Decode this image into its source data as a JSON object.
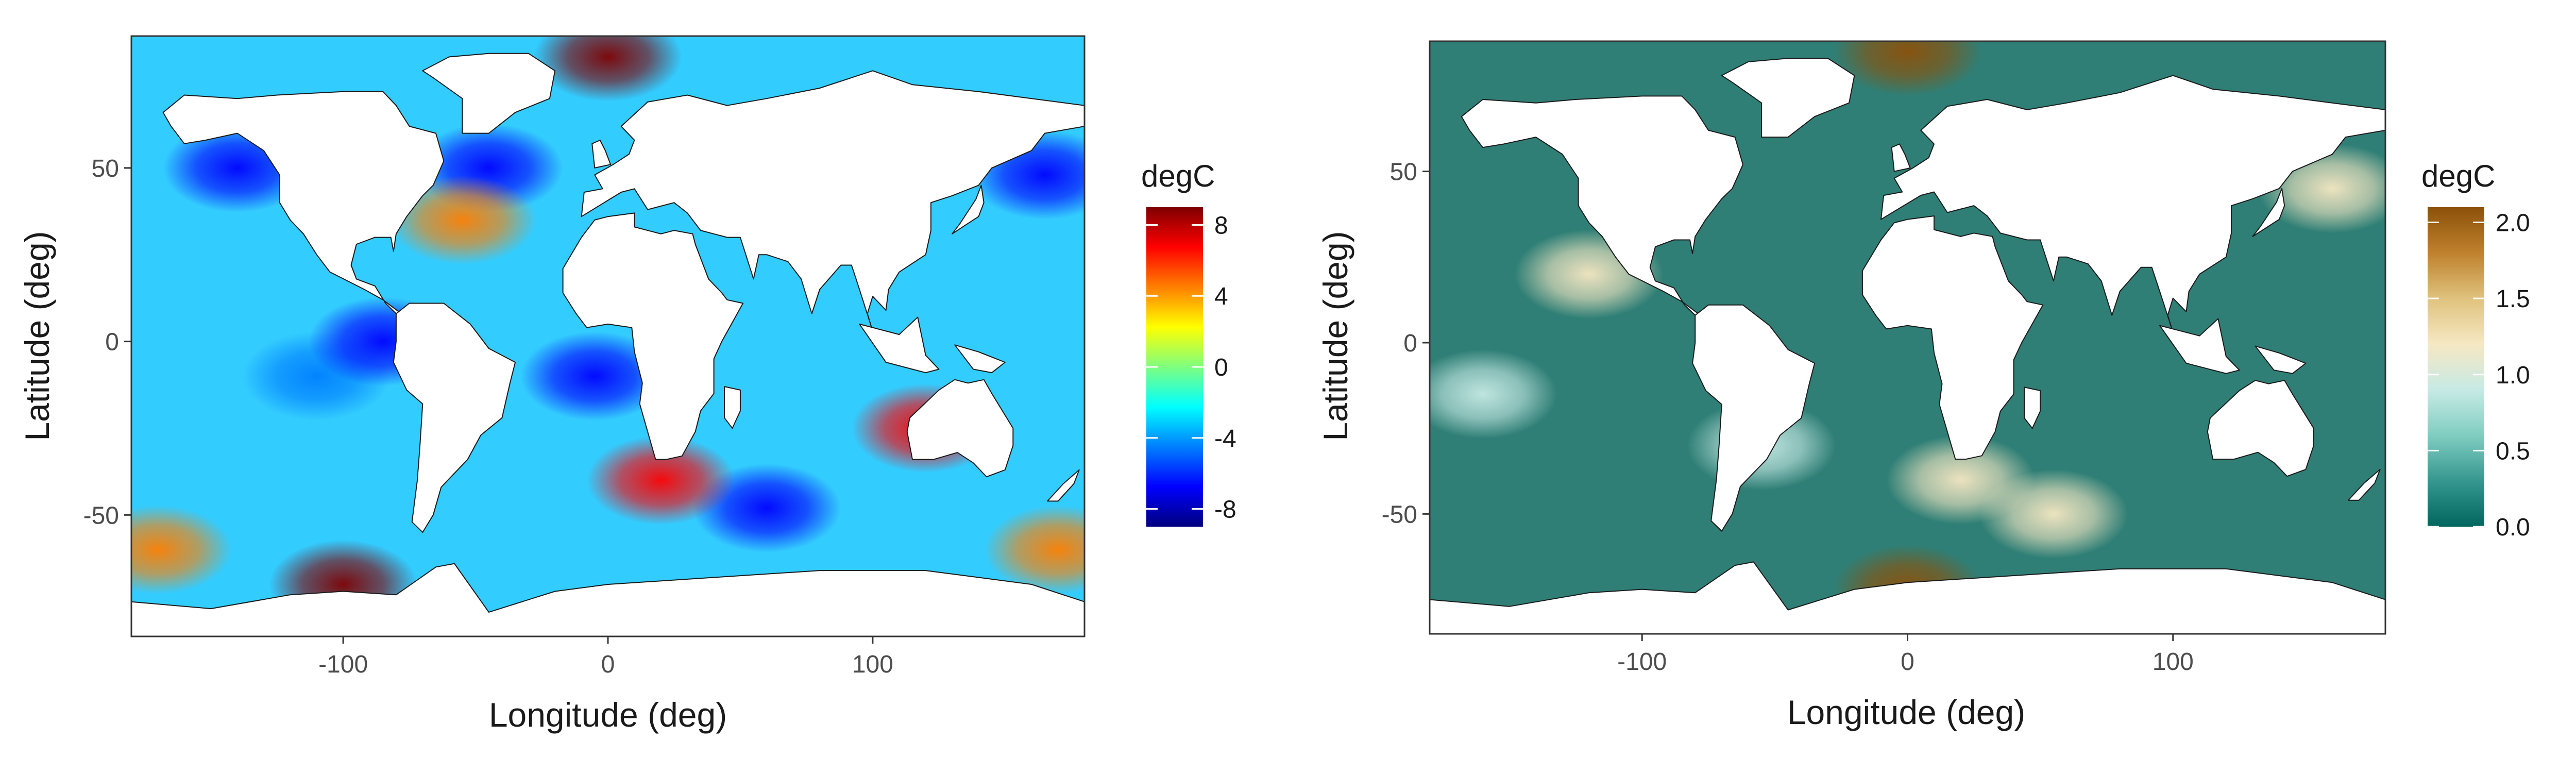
{
  "chart_data": [
    {
      "type": "heatmap",
      "panel": "left",
      "xlabel": "Longitude (deg)",
      "ylabel": "Latitude (deg)",
      "xlim": [
        -180,
        180
      ],
      "ylim": [
        -85,
        88
      ],
      "x_ticks": [
        -100,
        0,
        100
      ],
      "x_tick_labels": [
        "-100",
        "0",
        "100"
      ],
      "y_ticks": [
        -50,
        0,
        50
      ],
      "y_tick_labels": [
        "-50",
        "0",
        "50"
      ],
      "legend": {
        "title": "degC",
        "range": [
          -9,
          9
        ],
        "breaks": [
          8,
          4,
          0,
          -4,
          -8
        ],
        "break_labels": [
          "8",
          "4",
          "0",
          "-4",
          "-8"
        ],
        "colors": [
          "#00007f",
          "#0000ff",
          "#007fff",
          "#00ffff",
          "#7fff7f",
          "#ffff00",
          "#ff7f00",
          "#ff0000",
          "#7f0000"
        ],
        "placement": "right"
      },
      "grid": false,
      "features": [
        {
          "lon": -140,
          "lat": 50,
          "value": -7
        },
        {
          "lon": -45,
          "lat": 50,
          "value": -7
        },
        {
          "lon": 165,
          "lat": 48,
          "value": -7
        },
        {
          "lon": -110,
          "lat": -10,
          "value": -5
        },
        {
          "lon": -85,
          "lat": 0,
          "value": -7
        },
        {
          "lon": -5,
          "lat": -10,
          "value": -7
        },
        {
          "lon": 60,
          "lat": -48,
          "value": -6
        },
        {
          "lon": -100,
          "lat": -70,
          "value": 8
        },
        {
          "lon": 0,
          "lat": 82,
          "value": 9
        },
        {
          "lon": -55,
          "lat": 35,
          "value": 5
        },
        {
          "lon": 20,
          "lat": -40,
          "value": 7
        },
        {
          "lon": 120,
          "lat": -25,
          "value": 6
        },
        {
          "lon": -170,
          "lat": -60,
          "value": 5
        },
        {
          "lon": 170,
          "lat": -60,
          "value": 5
        }
      ]
    },
    {
      "type": "heatmap",
      "panel": "right",
      "xlabel": "Longitude (deg)",
      "ylabel": "Latitude (deg)",
      "xlim": [
        -180,
        180
      ],
      "ylim": [
        -85,
        88
      ],
      "x_ticks": [
        -100,
        0,
        100
      ],
      "x_tick_labels": [
        "-100",
        "0",
        "100"
      ],
      "y_ticks": [
        -50,
        0,
        50
      ],
      "y_tick_labels": [
        "-50",
        "0",
        "50"
      ],
      "legend": {
        "title": "degC",
        "range": [
          0,
          2.1
        ],
        "breaks": [
          2.0,
          1.5,
          1.0,
          0.5,
          0.0
        ],
        "break_labels": [
          "2.0",
          "1.5",
          "1.0",
          "0.5",
          "0.0"
        ],
        "colors": [
          "#01665e",
          "#35978f",
          "#80cdc1",
          "#c7eae5",
          "#f6e8c3",
          "#dfc27d",
          "#bf812d",
          "#8c510a"
        ],
        "placement": "right"
      },
      "grid": false,
      "features": [
        {
          "lon": 0,
          "lat": 85,
          "value": 2.0
        },
        {
          "lon": 0,
          "lat": -72,
          "value": 2.0
        },
        {
          "lon": -120,
          "lat": 20,
          "value": 1.3
        },
        {
          "lon": -160,
          "lat": -15,
          "value": 0.9
        },
        {
          "lon": 20,
          "lat": -40,
          "value": 1.1
        },
        {
          "lon": 55,
          "lat": -50,
          "value": 1.2
        },
        {
          "lon": 160,
          "lat": 45,
          "value": 1.2
        },
        {
          "lon": -55,
          "lat": -30,
          "value": 0.8
        }
      ]
    }
  ]
}
